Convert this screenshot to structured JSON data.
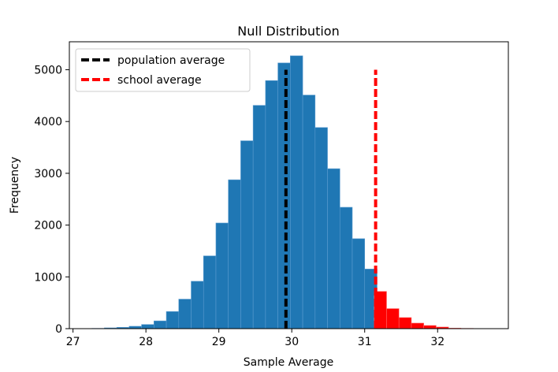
{
  "chart_data": {
    "type": "bar",
    "title": "Null Distribution",
    "xlabel": "Sample Average",
    "ylabel": "Frequency",
    "xlim": [
      26.95,
      32.97
    ],
    "ylim": [
      0,
      5540
    ],
    "xticks": [
      "27",
      "28",
      "29",
      "30",
      "31",
      "32"
    ],
    "yticks": [
      "0",
      "1000",
      "2000",
      "3000",
      "4000",
      "5000"
    ],
    "bin_width": 0.17,
    "series": [
      {
        "color": "#1f77b4",
        "bin_starts": [
          27.26,
          27.43,
          27.6,
          27.77,
          27.94,
          28.11,
          28.28,
          28.45,
          28.62,
          28.79,
          28.96,
          29.13,
          29.3,
          29.47,
          29.64,
          29.81,
          29.98,
          30.15,
          30.32,
          30.49,
          30.66,
          30.83,
          31.0
        ],
        "values": [
          5,
          15,
          25,
          46,
          80,
          150,
          330,
          570,
          915,
          1405,
          2040,
          2875,
          3628,
          4312,
          4790,
          5131,
          5269,
          4511,
          3884,
          3089,
          2344,
          1737,
          1151
        ]
      },
      {
        "color": "#ff0000",
        "bin_starts": [
          31.13,
          31.3,
          31.47,
          31.64,
          31.81,
          31.98,
          32.15,
          32.32,
          32.49
        ],
        "values": [
          719,
          387,
          214,
          107,
          61,
          31,
          10,
          5,
          3
        ]
      }
    ],
    "vlines": [
      {
        "label": "population average",
        "x": 29.92,
        "ymax": 5000,
        "color": "#000000",
        "style": "dashed"
      },
      {
        "label": "school average",
        "x": 31.15,
        "ymax": 5000,
        "color": "#ff0000",
        "style": "dashed"
      }
    ],
    "legend": {
      "placement": "top-left",
      "entries": [
        "population average",
        "school average"
      ]
    },
    "grid": false
  }
}
